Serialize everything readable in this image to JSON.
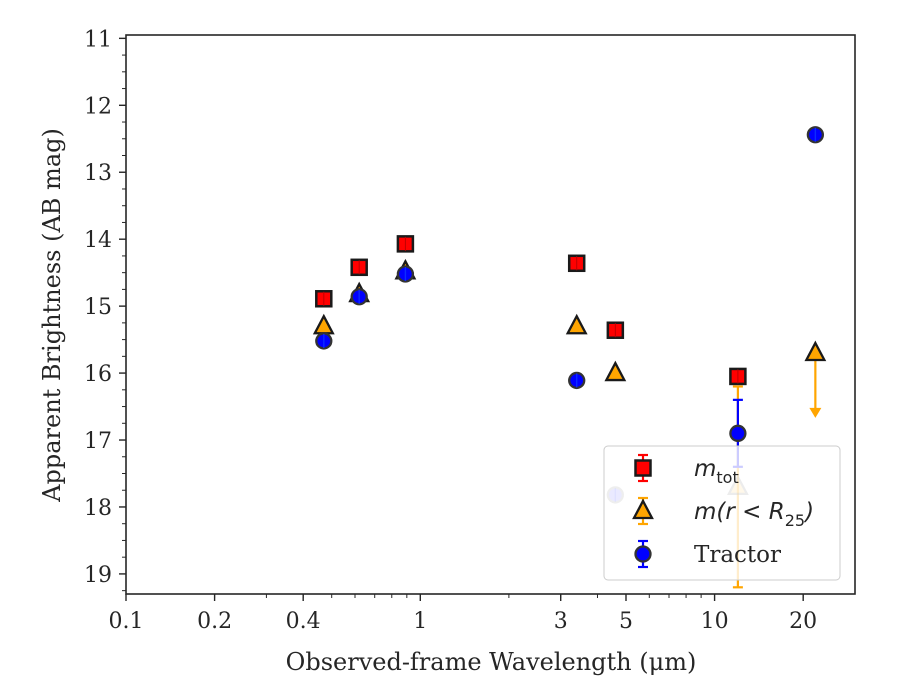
{
  "chart_data": {
    "type": "scatter",
    "title": "",
    "xlabel": "Observed-frame Wavelength (μm)",
    "ylabel": "Apparent Brightness (AB mag)",
    "x_scale": "log",
    "xlim": [
      0.1,
      30
    ],
    "ylim": [
      19.3,
      10.95
    ],
    "y_inverted": true,
    "x_ticks": [
      {
        "value": 0.1,
        "label": "0.1"
      },
      {
        "value": 0.2,
        "label": "0.2"
      },
      {
        "value": 0.4,
        "label": "0.4"
      },
      {
        "value": 1,
        "label": "1"
      },
      {
        "value": 3,
        "label": "3"
      },
      {
        "value": 5,
        "label": "5"
      },
      {
        "value": 10,
        "label": "10"
      },
      {
        "value": 20,
        "label": "20"
      }
    ],
    "y_ticks": [
      {
        "value": 11,
        "label": "11"
      },
      {
        "value": 12,
        "label": "12"
      },
      {
        "value": 13,
        "label": "13"
      },
      {
        "value": 14,
        "label": "14"
      },
      {
        "value": 15,
        "label": "15"
      },
      {
        "value": 16,
        "label": "16"
      },
      {
        "value": 17,
        "label": "17"
      },
      {
        "value": 18,
        "label": "18"
      },
      {
        "value": 19,
        "label": "19"
      }
    ],
    "grid": false,
    "legend_position": "lower-right",
    "series": [
      {
        "name": "m_tot",
        "legend_base": "m",
        "legend_sub": "tot",
        "legend_suffix": "",
        "marker": "square",
        "color": "#ff0000",
        "ecolor": "#ff0000",
        "points": [
          {
            "x": 0.47,
            "y": 14.89
          },
          {
            "x": 0.62,
            "y": 14.42
          },
          {
            "x": 0.89,
            "y": 14.07
          },
          {
            "x": 3.4,
            "y": 14.36
          },
          {
            "x": 4.6,
            "y": 15.36
          },
          {
            "x": 12.0,
            "y": 16.05
          }
        ]
      },
      {
        "name": "m(r < R25)",
        "legend_base": "m(r < R",
        "legend_sub": "25",
        "legend_suffix": ")",
        "marker": "triangle",
        "color": "#ffa500",
        "ecolor": "#ffa500",
        "points": [
          {
            "x": 0.47,
            "y": 15.3
          },
          {
            "x": 0.62,
            "y": 14.82
          },
          {
            "x": 0.89,
            "y": 14.48
          },
          {
            "x": 3.4,
            "y": 15.3
          },
          {
            "x": 4.6,
            "y": 16.0
          },
          {
            "x": 12.0,
            "y": 17.7,
            "err": 1.5,
            "faded": true
          },
          {
            "x": 22.0,
            "y": 15.7,
            "upper_limit": true,
            "limit_to": 16.55
          }
        ]
      },
      {
        "name": "Tractor",
        "legend_base": "Tractor",
        "legend_sub": "",
        "legend_suffix": "",
        "marker": "circle",
        "color": "#0000ff",
        "ecolor": "#0000ff",
        "points": [
          {
            "x": 0.47,
            "y": 15.52
          },
          {
            "x": 0.62,
            "y": 14.86
          },
          {
            "x": 0.89,
            "y": 14.52
          },
          {
            "x": 3.4,
            "y": 16.11
          },
          {
            "x": 4.6,
            "y": 17.82,
            "faded": true
          },
          {
            "x": 12.0,
            "y": 16.9,
            "err": 0.5
          },
          {
            "x": 22.0,
            "y": 12.44
          }
        ]
      }
    ]
  }
}
